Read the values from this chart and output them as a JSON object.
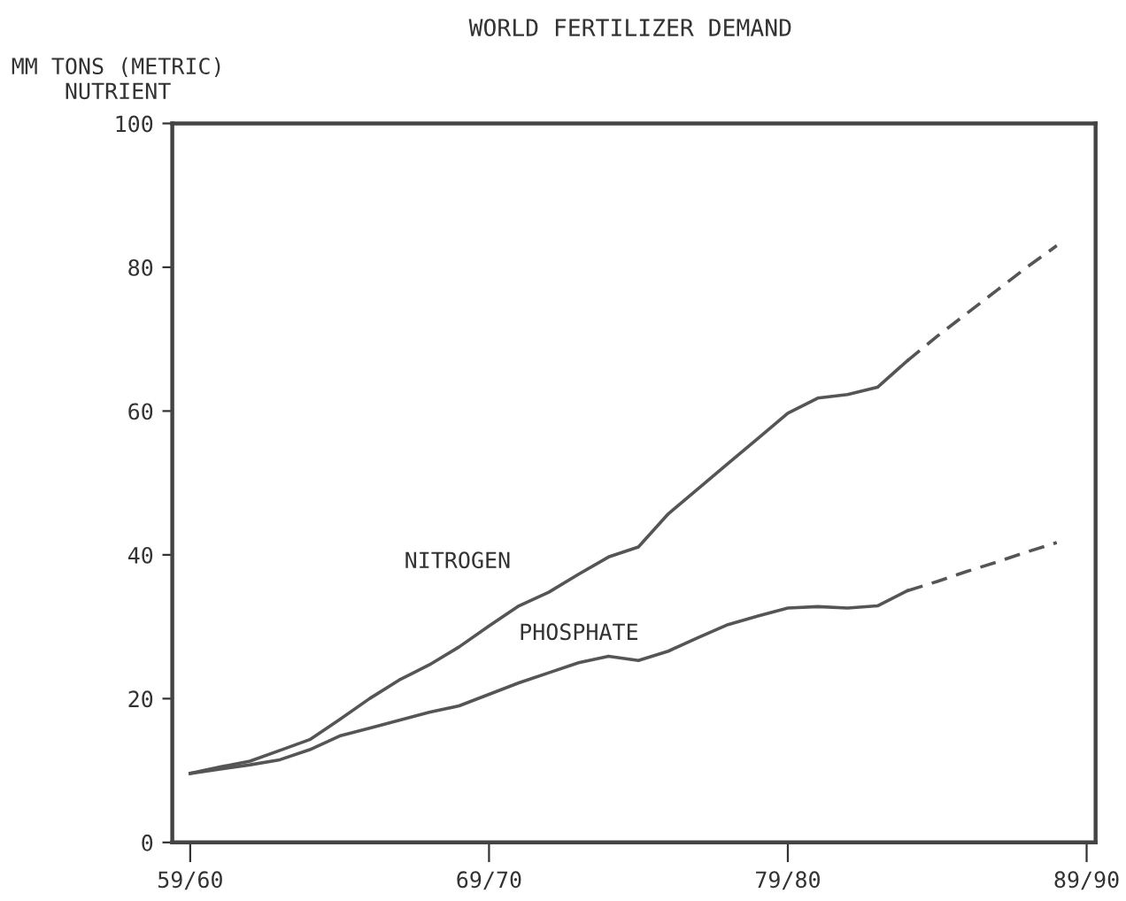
{
  "chart_data": {
    "type": "line",
    "title": "WORLD FERTILIZER DEMAND",
    "ylabel": "MM TONS (METRIC)\nNUTRIENT",
    "categories": [
      "59/60",
      null,
      null,
      null,
      null,
      null,
      null,
      null,
      null,
      null,
      "69/70",
      null,
      null,
      null,
      null,
      null,
      null,
      null,
      null,
      null,
      "79/80",
      null,
      null,
      null,
      null,
      null,
      null,
      null,
      null,
      null,
      "89/90"
    ],
    "ylim": [
      0,
      100
    ],
    "yticks": [
      0,
      20,
      40,
      60,
      80,
      100
    ],
    "grid": false,
    "legend": false,
    "marker": "none",
    "series": [
      {
        "name": "NITROGEN",
        "color": "#555555",
        "line_style": "solid",
        "values": [
          9.6,
          10.5,
          11.3,
          12.8,
          14.3,
          17.1,
          20.0,
          22.6,
          24.7,
          27.2,
          30.1,
          32.9,
          34.8,
          37.3,
          39.7,
          41.1,
          45.7,
          49.2,
          52.7,
          56.2,
          59.7,
          61.8,
          62.3,
          63.3,
          67,
          null,
          null,
          null,
          null,
          null,
          null
        ]
      },
      {
        "color": "#555555",
        "line_style": "dashed",
        "values": [
          null,
          null,
          null,
          null,
          null,
          null,
          null,
          null,
          null,
          null,
          null,
          null,
          null,
          null,
          null,
          null,
          null,
          null,
          null,
          null,
          null,
          null,
          null,
          null,
          67,
          70.4,
          73.6,
          76.8,
          80,
          83,
          null
        ]
      },
      {
        "name": "PHOSPHATE",
        "color": "#555555",
        "line_style": "solid",
        "values": [
          9.6,
          10.2,
          10.8,
          11.5,
          12.9,
          14.8,
          15.9,
          17.0,
          18.1,
          19.0,
          20.6,
          22.2,
          23.6,
          25.0,
          25.9,
          25.3,
          26.6,
          28.5,
          30.3,
          31.5,
          32.6,
          32.8,
          32.6,
          32.9,
          35.0,
          null,
          null,
          null,
          null,
          null,
          null
        ]
      },
      {
        "color": "#555555",
        "line_style": "dashed",
        "values": [
          null,
          null,
          null,
          null,
          null,
          null,
          null,
          null,
          null,
          null,
          null,
          null,
          null,
          null,
          null,
          null,
          null,
          null,
          null,
          null,
          null,
          null,
          null,
          null,
          35.0,
          36.3,
          37.7,
          39.0,
          40.4,
          41.7,
          null
        ]
      }
    ]
  }
}
